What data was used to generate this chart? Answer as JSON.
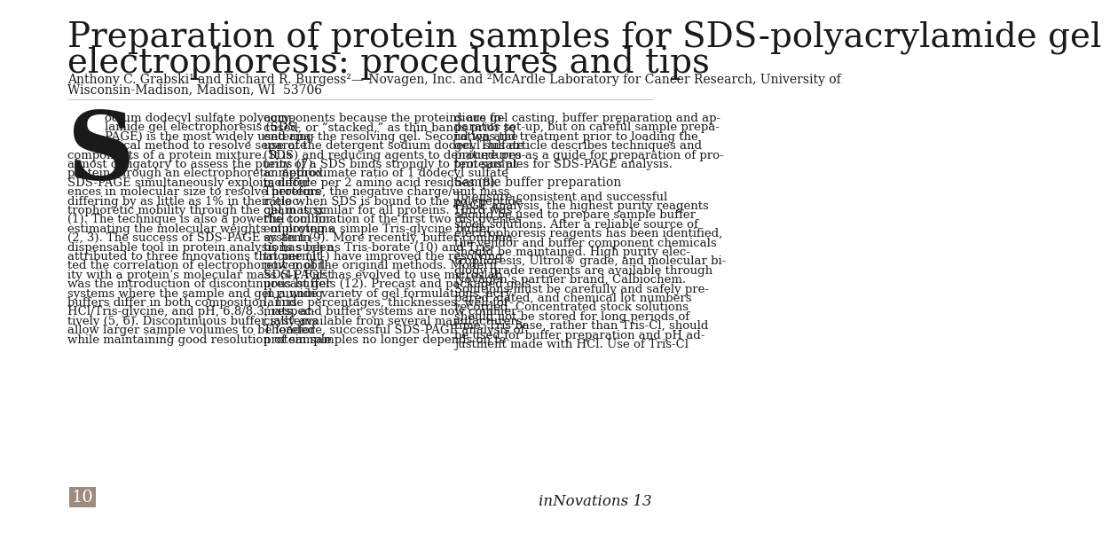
{
  "title_line1": "Preparation of protein samples for SDS-polyacrylamide gel",
  "title_line2": "electrophoresis: procedures and tips",
  "authors": "Anthony C. Grabski¹ and Richard R. Burgess²—¹Novagen, Inc. and ²McArdle Laboratory for Cancer Research, University of",
  "authors_line2": "Wisconsin-Madison, Madison, WI  53706",
  "drop_cap": "S",
  "col1_text": "odium dodecyl sulfate polyacry-\nlamide gel electrophoresis (SDS-\nPAGE) is the most widely used ana-\nlytical method to resolve separate\ncomponents of a protein mixture. It is\nalmost obligatory to assess the purity of a\nprotein through an electrophoretic method.\nSDS-PAGE simultaneously exploits differ-\nences in molecular size to resolve proteins\ndiffering by as little as 1% in their elec-\ntrophoretic mobility through the gel matrix\n(1). The technique is also a powerful tool for\nestimating the molecular weights of proteins\n(2, 3). The success of SDS-PAGE as an in-\ndispensable tool in protein analysis has been\nattributed to three innovations that permit-\nted the correlation of electrophoretic mobil-\nity with a protein’s molecular mass (4). First\nwas the introduction of discontinuous buffer\nsystems where the sample and gel running\nbuffers differ in both composition, Tris-\nHCl/Tris-glycine, and pH, 6.8/8.3, respec-\ntively (5, 6). Discontinuous buffer systems\nallow larger sample volumes to be loaded\nwhile maintaining good resolution of sample",
  "col2_text": "components because the proteins are fo-\ncused, or “stacked,” as thin bands prior to\nentering the resolving gel. Second was the\nuse of the detergent sodium dodecyl sulfate\n(SDS) and reducing agents to denature pro-\nteins (7). SDS binds strongly to proteins at\nan approximate ratio of 1 dodecyl sulfate\nmolecule per 2 amino acid residues (8).\nTherefore, the negative charge/unit mass\nratio when SDS is bound to the polypeptide\nchain is similar for all proteins. Third was\nthe combination of the first two discoveries\nemploying a simple Tris-glycine buffer\nsystem (9). More recently, buffer combina-\ntions such as Tris-borate (10) and Tris-\ntricine (11) have improved the resolving\npower of the original methods. Modern\nSDS-PAGE has evolved to use microslab\nprecast gels (12). Precast and packaged gels\nin a wide variety of gel formulations, acry-\nlamide percentages, thicknesses, well for-\nmats, and buffer systems are now commer-\ncially available from several manufacturers.\nTherefore, successful SDS-PAGE analysis of\nprotein samples no longer depends on te-",
  "col3_heading": "Sample buffer preparation",
  "col3_text_before": "dious gel casting, buffer preparation and ap-\nparatus set-up, but on careful sample prepa-\nration and treatment prior to loading the\ngel. This article describes techniques and\nprocedures as a guide for preparation of pro-\ntein samples for SDS-PAGE analysis.",
  "col3_text_after": "To ensure consistent and successful\nPAGE analysis, the highest purity reagents\nshould be used to prepare sample buffer\nstock solutions. After a reliable source of\nelectrophoresis reagents has been identified,\nthe vendor and buffer component chemicals\nshould be maintained. High purity elec-\ntrophoresis, Ultrol® grade, and molecular bi-\nology grade reagents are available through\nNovagen’s partner brand, Calbiochem.\nSolutions must be carefully and safely pre-\npared, dated, and chemical lot numbers\nrecorded. Concentrated stock solutions\nshould not be stored for long periods of\ntime. Tris base, rather than Tris-Cl, should\nbe used for buffer preparation and pH ad-\njustment made with HCl. Use of Tris-Cl",
  "page_number": "10",
  "page_box_color": "#9e8a7e",
  "footer_right": "inNovations 13",
  "bg_color": "#ffffff",
  "title_color": "#1a1a1a",
  "text_color": "#1a1a1a",
  "title_fontsize": 28,
  "author_fontsize": 10,
  "body_fontsize": 9.5,
  "heading_fontsize": 10,
  "footer_fontsize": 12,
  "page_num_fontsize": 14
}
